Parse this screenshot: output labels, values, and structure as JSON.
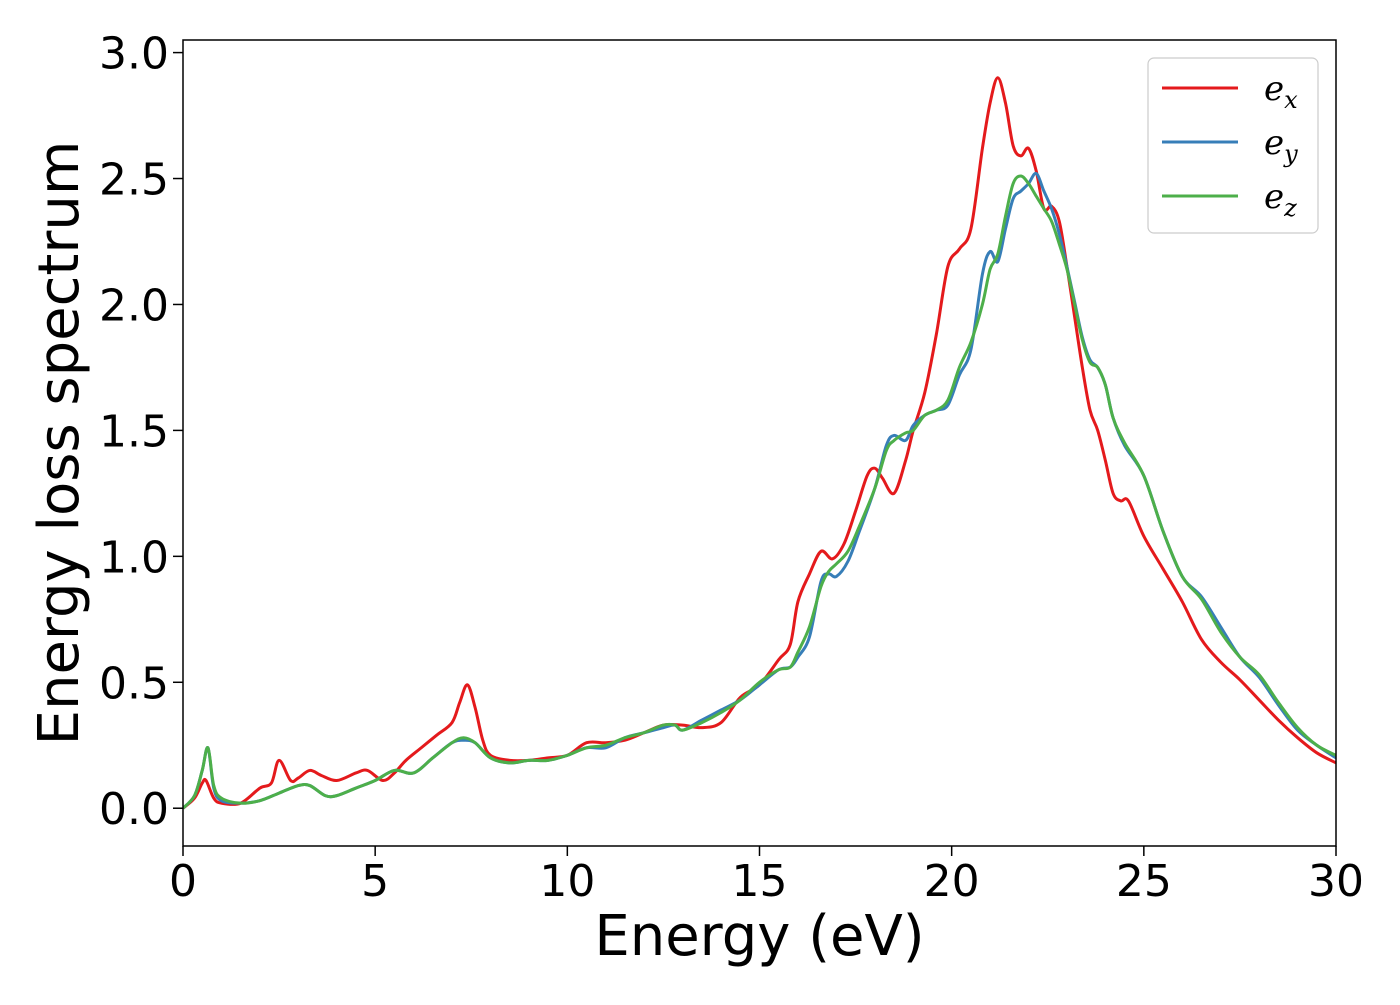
{
  "chart_data": {
    "type": "line",
    "xlabel": "Energy (eV)",
    "ylabel": "Energy loss spectrum",
    "xlim": [
      0,
      30
    ],
    "ylim": [
      -0.15,
      3.05
    ],
    "x_ticks": [
      0,
      5,
      10,
      15,
      20,
      25,
      30
    ],
    "y_ticks": [
      0.0,
      0.5,
      1.0,
      1.5,
      2.0,
      2.5,
      3.0
    ],
    "x_tick_labels": [
      "0",
      "5",
      "10",
      "15",
      "20",
      "25",
      "30"
    ],
    "y_tick_labels": [
      "0.0",
      "0.5",
      "1.0",
      "1.5",
      "2.0",
      "2.5",
      "3.0"
    ],
    "grid": false,
    "legend_position": "top-right",
    "series": [
      {
        "name": "e_x",
        "legend_base": "e",
        "legend_sub": "x",
        "color": "#e41a1c",
        "points": [
          [
            0,
            0.0
          ],
          [
            0.3,
            0.04
          ],
          [
            0.5,
            0.1
          ],
          [
            0.6,
            0.11
          ],
          [
            0.8,
            0.04
          ],
          [
            1.0,
            0.02
          ],
          [
            1.5,
            0.02
          ],
          [
            2.0,
            0.08
          ],
          [
            2.3,
            0.1
          ],
          [
            2.5,
            0.19
          ],
          [
            2.8,
            0.11
          ],
          [
            3.0,
            0.12
          ],
          [
            3.3,
            0.15
          ],
          [
            3.6,
            0.13
          ],
          [
            4.0,
            0.11
          ],
          [
            4.5,
            0.14
          ],
          [
            4.8,
            0.15
          ],
          [
            5.2,
            0.11
          ],
          [
            5.5,
            0.14
          ],
          [
            5.8,
            0.19
          ],
          [
            6.2,
            0.24
          ],
          [
            6.6,
            0.29
          ],
          [
            7.0,
            0.34
          ],
          [
            7.2,
            0.42
          ],
          [
            7.4,
            0.49
          ],
          [
            7.6,
            0.4
          ],
          [
            7.8,
            0.27
          ],
          [
            8.0,
            0.21
          ],
          [
            8.5,
            0.19
          ],
          [
            9.0,
            0.19
          ],
          [
            9.5,
            0.2
          ],
          [
            10.0,
            0.21
          ],
          [
            10.5,
            0.26
          ],
          [
            11.0,
            0.26
          ],
          [
            11.5,
            0.27
          ],
          [
            12.0,
            0.3
          ],
          [
            12.5,
            0.33
          ],
          [
            13.0,
            0.33
          ],
          [
            13.5,
            0.32
          ],
          [
            14.0,
            0.34
          ],
          [
            14.5,
            0.44
          ],
          [
            15.0,
            0.49
          ],
          [
            15.5,
            0.59
          ],
          [
            15.8,
            0.65
          ],
          [
            16.0,
            0.82
          ],
          [
            16.3,
            0.93
          ],
          [
            16.6,
            1.02
          ],
          [
            16.9,
            0.99
          ],
          [
            17.2,
            1.05
          ],
          [
            17.5,
            1.18
          ],
          [
            17.8,
            1.32
          ],
          [
            18.0,
            1.35
          ],
          [
            18.2,
            1.31
          ],
          [
            18.5,
            1.25
          ],
          [
            18.8,
            1.38
          ],
          [
            19.0,
            1.5
          ],
          [
            19.3,
            1.65
          ],
          [
            19.6,
            1.88
          ],
          [
            19.9,
            2.15
          ],
          [
            20.2,
            2.22
          ],
          [
            20.5,
            2.3
          ],
          [
            20.8,
            2.62
          ],
          [
            21.0,
            2.8
          ],
          [
            21.2,
            2.9
          ],
          [
            21.4,
            2.8
          ],
          [
            21.6,
            2.63
          ],
          [
            21.8,
            2.59
          ],
          [
            22.0,
            2.62
          ],
          [
            22.2,
            2.53
          ],
          [
            22.4,
            2.38
          ],
          [
            22.6,
            2.39
          ],
          [
            22.8,
            2.33
          ],
          [
            23.0,
            2.15
          ],
          [
            23.2,
            1.95
          ],
          [
            23.4,
            1.75
          ],
          [
            23.6,
            1.58
          ],
          [
            23.8,
            1.5
          ],
          [
            24.0,
            1.38
          ],
          [
            24.2,
            1.25
          ],
          [
            24.4,
            1.22
          ],
          [
            24.6,
            1.22
          ],
          [
            25.0,
            1.08
          ],
          [
            25.5,
            0.95
          ],
          [
            26.0,
            0.82
          ],
          [
            26.5,
            0.67
          ],
          [
            27.0,
            0.58
          ],
          [
            27.5,
            0.51
          ],
          [
            28.0,
            0.43
          ],
          [
            28.5,
            0.35
          ],
          [
            29.0,
            0.28
          ],
          [
            29.5,
            0.22
          ],
          [
            30.0,
            0.18
          ]
        ]
      },
      {
        "name": "e_y",
        "legend_base": "e",
        "legend_sub": "y",
        "color": "#377eb8",
        "points": [
          [
            0,
            0.0
          ],
          [
            0.3,
            0.05
          ],
          [
            0.5,
            0.15
          ],
          [
            0.65,
            0.24
          ],
          [
            0.8,
            0.08
          ],
          [
            1.0,
            0.03
          ],
          [
            1.5,
            0.02
          ],
          [
            2.0,
            0.03
          ],
          [
            2.5,
            0.06
          ],
          [
            3.0,
            0.09
          ],
          [
            3.3,
            0.09
          ],
          [
            3.7,
            0.05
          ],
          [
            4.0,
            0.05
          ],
          [
            4.5,
            0.08
          ],
          [
            5.0,
            0.11
          ],
          [
            5.5,
            0.15
          ],
          [
            6.0,
            0.14
          ],
          [
            6.5,
            0.2
          ],
          [
            7.0,
            0.26
          ],
          [
            7.3,
            0.27
          ],
          [
            7.6,
            0.26
          ],
          [
            8.0,
            0.2
          ],
          [
            8.5,
            0.18
          ],
          [
            9.0,
            0.19
          ],
          [
            9.5,
            0.19
          ],
          [
            10.0,
            0.21
          ],
          [
            10.5,
            0.24
          ],
          [
            11.0,
            0.24
          ],
          [
            11.5,
            0.28
          ],
          [
            12.0,
            0.3
          ],
          [
            12.5,
            0.32
          ],
          [
            12.8,
            0.33
          ],
          [
            13.0,
            0.31
          ],
          [
            13.5,
            0.35
          ],
          [
            14.0,
            0.39
          ],
          [
            14.5,
            0.43
          ],
          [
            15.0,
            0.49
          ],
          [
            15.5,
            0.55
          ],
          [
            15.8,
            0.56
          ],
          [
            16.0,
            0.6
          ],
          [
            16.3,
            0.68
          ],
          [
            16.6,
            0.9
          ],
          [
            16.8,
            0.93
          ],
          [
            17.0,
            0.92
          ],
          [
            17.3,
            0.98
          ],
          [
            17.6,
            1.1
          ],
          [
            18.0,
            1.27
          ],
          [
            18.3,
            1.44
          ],
          [
            18.5,
            1.48
          ],
          [
            18.8,
            1.46
          ],
          [
            19.0,
            1.52
          ],
          [
            19.3,
            1.56
          ],
          [
            19.6,
            1.58
          ],
          [
            19.9,
            1.6
          ],
          [
            20.2,
            1.72
          ],
          [
            20.5,
            1.82
          ],
          [
            20.8,
            2.12
          ],
          [
            21.0,
            2.21
          ],
          [
            21.2,
            2.17
          ],
          [
            21.4,
            2.3
          ],
          [
            21.6,
            2.42
          ],
          [
            21.8,
            2.45
          ],
          [
            22.0,
            2.48
          ],
          [
            22.2,
            2.52
          ],
          [
            22.4,
            2.45
          ],
          [
            22.6,
            2.38
          ],
          [
            22.8,
            2.28
          ],
          [
            23.0,
            2.15
          ],
          [
            23.2,
            2.01
          ],
          [
            23.4,
            1.87
          ],
          [
            23.6,
            1.78
          ],
          [
            23.8,
            1.75
          ],
          [
            24.0,
            1.68
          ],
          [
            24.2,
            1.55
          ],
          [
            24.5,
            1.44
          ],
          [
            25.0,
            1.32
          ],
          [
            25.5,
            1.1
          ],
          [
            26.0,
            0.92
          ],
          [
            26.5,
            0.84
          ],
          [
            27.0,
            0.72
          ],
          [
            27.5,
            0.6
          ],
          [
            28.0,
            0.52
          ],
          [
            28.5,
            0.41
          ],
          [
            29.0,
            0.31
          ],
          [
            29.5,
            0.25
          ],
          [
            30.0,
            0.2
          ]
        ]
      },
      {
        "name": "e_z",
        "legend_base": "e",
        "legend_sub": "z",
        "color": "#4daf4a",
        "points": [
          [
            0,
            0.0
          ],
          [
            0.3,
            0.05
          ],
          [
            0.5,
            0.15
          ],
          [
            0.65,
            0.24
          ],
          [
            0.8,
            0.09
          ],
          [
            1.0,
            0.04
          ],
          [
            1.5,
            0.02
          ],
          [
            2.0,
            0.03
          ],
          [
            2.5,
            0.06
          ],
          [
            3.0,
            0.09
          ],
          [
            3.3,
            0.09
          ],
          [
            3.7,
            0.05
          ],
          [
            4.0,
            0.05
          ],
          [
            4.5,
            0.08
          ],
          [
            5.0,
            0.11
          ],
          [
            5.5,
            0.15
          ],
          [
            6.0,
            0.14
          ],
          [
            6.5,
            0.2
          ],
          [
            7.0,
            0.26
          ],
          [
            7.3,
            0.28
          ],
          [
            7.6,
            0.26
          ],
          [
            8.0,
            0.2
          ],
          [
            8.5,
            0.18
          ],
          [
            9.0,
            0.19
          ],
          [
            9.5,
            0.19
          ],
          [
            10.0,
            0.21
          ],
          [
            10.5,
            0.24
          ],
          [
            11.0,
            0.25
          ],
          [
            11.5,
            0.28
          ],
          [
            12.0,
            0.3
          ],
          [
            12.5,
            0.33
          ],
          [
            12.8,
            0.33
          ],
          [
            13.0,
            0.31
          ],
          [
            13.5,
            0.34
          ],
          [
            14.0,
            0.38
          ],
          [
            14.5,
            0.43
          ],
          [
            15.0,
            0.5
          ],
          [
            15.5,
            0.55
          ],
          [
            15.8,
            0.56
          ],
          [
            16.0,
            0.62
          ],
          [
            16.3,
            0.72
          ],
          [
            16.6,
            0.88
          ],
          [
            16.8,
            0.94
          ],
          [
            17.0,
            0.97
          ],
          [
            17.3,
            1.02
          ],
          [
            17.6,
            1.12
          ],
          [
            18.0,
            1.27
          ],
          [
            18.3,
            1.42
          ],
          [
            18.5,
            1.46
          ],
          [
            18.8,
            1.49
          ],
          [
            19.0,
            1.5
          ],
          [
            19.3,
            1.56
          ],
          [
            19.6,
            1.58
          ],
          [
            19.9,
            1.62
          ],
          [
            20.2,
            1.75
          ],
          [
            20.5,
            1.85
          ],
          [
            20.8,
            2.0
          ],
          [
            21.0,
            2.14
          ],
          [
            21.2,
            2.2
          ],
          [
            21.4,
            2.35
          ],
          [
            21.6,
            2.48
          ],
          [
            21.8,
            2.51
          ],
          [
            22.0,
            2.48
          ],
          [
            22.2,
            2.43
          ],
          [
            22.4,
            2.38
          ],
          [
            22.6,
            2.33
          ],
          [
            22.8,
            2.24
          ],
          [
            23.0,
            2.14
          ],
          [
            23.2,
            2.0
          ],
          [
            23.4,
            1.86
          ],
          [
            23.6,
            1.77
          ],
          [
            23.8,
            1.75
          ],
          [
            24.0,
            1.68
          ],
          [
            24.2,
            1.55
          ],
          [
            24.5,
            1.45
          ],
          [
            25.0,
            1.32
          ],
          [
            25.5,
            1.1
          ],
          [
            26.0,
            0.92
          ],
          [
            26.5,
            0.83
          ],
          [
            27.0,
            0.7
          ],
          [
            27.5,
            0.6
          ],
          [
            28.0,
            0.53
          ],
          [
            28.5,
            0.42
          ],
          [
            29.0,
            0.32
          ],
          [
            29.5,
            0.25
          ],
          [
            30.0,
            0.21
          ]
        ]
      }
    ]
  }
}
